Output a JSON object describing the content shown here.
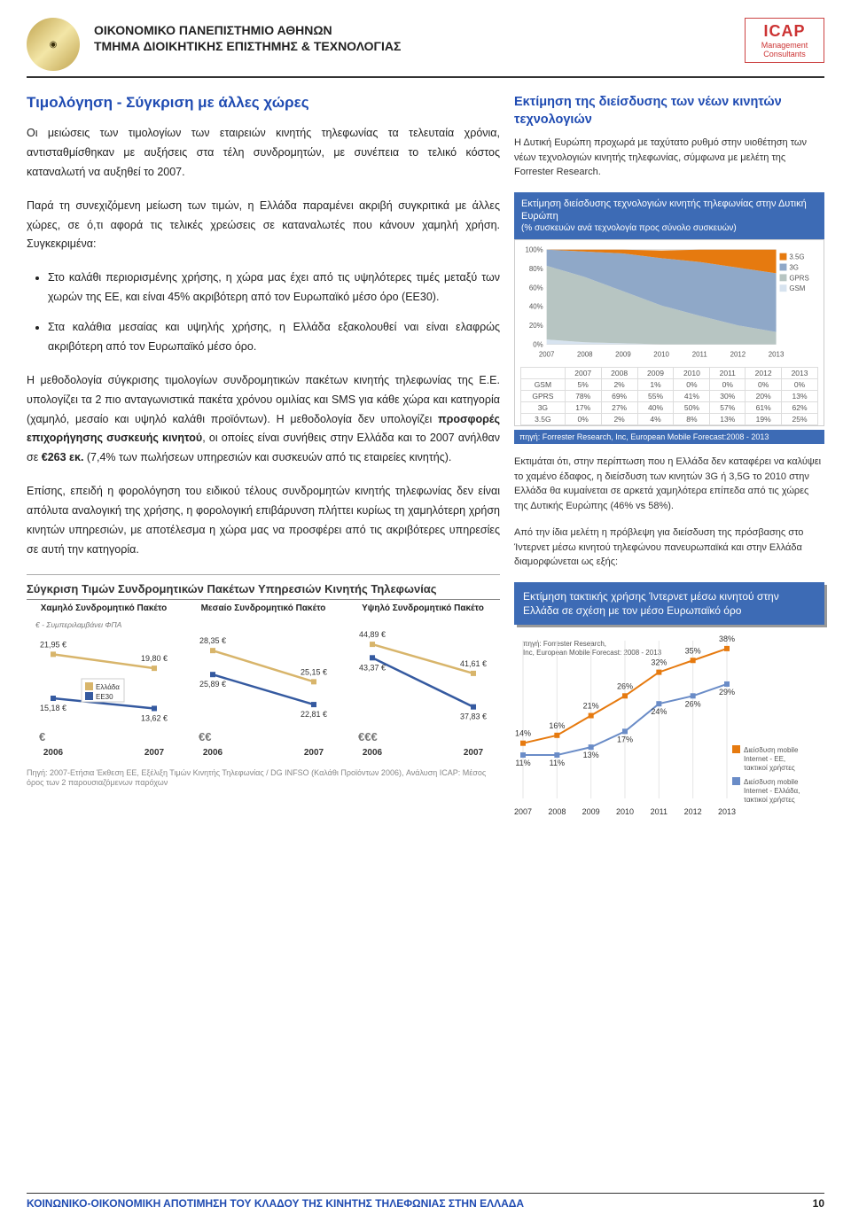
{
  "header": {
    "univ1": "ΟΙΚΟΝΟΜΙΚΟ ΠΑΝΕΠΙΣΤΗΜΙΟ ΑΘΗΝΩΝ",
    "univ2": "ΤΜΗΜΑ ΔΙΟΙΚΗΤΙΚΗΣ ΕΠΙΣΤΗΜΗΣ & ΤΕΧΝΟΛΟΓΙΑΣ",
    "icap_title": "ICAP",
    "icap_sub": "Management Consultants"
  },
  "main": {
    "title": "Τιμολόγηση - Σύγκριση με άλλες χώρες",
    "p1": "Οι μειώσεις των τιμολογίων των εταιρειών κινητής τηλεφωνίας τα τελευταία χρόνια, αντισταθμίσθηκαν με αυξήσεις στα τέλη συνδρομητών, με συνέπεια το τελικό κόστος καταναλωτή να αυξηθεί το 2007.",
    "p2": "Παρά τη συνεχιζόμενη μείωση των τιμών, η Ελλάδα παραμένει ακριβή συγκριτικά με άλλες χώρες, σε ό,τι αφορά τις τελικές χρεώσεις σε καταναλωτές που κάνουν χαμηλή χρήση. Συγκεκριμένα:",
    "b1": "Στο καλάθι περιορισμένης χρήσης, η χώρα μας έχει από τις υψηλότερες τιμές μεταξύ των χωρών της ΕΕ, και είναι 45% ακριβότερη από τον Ευρωπαϊκό μέσο όρο (ΕΕ30).",
    "b2": "Στα καλάθια μεσαίας και υψηλής χρήσης,  η Ελλάδα εξακολουθεί ναι είναι ελαφρώς ακριβότερη από τον Ευρωπαϊκό μέσο όρο.",
    "p3a": "Η μεθοδολογία σύγκρισης τιμολογίων συνδρομητικών πακέτων κινητής τηλεφωνίας της Ε.Ε. υπολογίζει τα 2 πιο ανταγωνιστικά  πακέτα χρόνου ομιλίας και SMS για κάθε χώρα και κατηγορία (χαμηλό, μεσαίο και υψηλό καλάθι προϊόντων). Η μεθοδολογία δεν υπολογίζει ",
    "p3b": "προσφορές επιχορήγησης συσκευής κινητού",
    "p3c": ", οι οποίες είναι συνήθεις στην Ελλάδα και το 2007 ανήλθαν σε ",
    "p3d": "€263 εκ.",
    "p3e": " (7,4% των πωλήσεων υπηρεσιών και συσκευών από τις εταιρείες κινητής).",
    "p4": "Επίσης, επειδή η φορολόγηση του ειδικού τέλους συνδρομητών κινητής τηλεφωνίας δεν είναι απόλυτα αναλογική της χρήσης, η φορολογική επιβάρυνση πλήττει κυρίως τη χαμηλότερη χρήση κινητών υπηρεσιών, με αποτέλεσμα η χώρα μας να προσφέρει από τις ακριβότερες υπηρεσίες σε αυτή την κατηγορία."
  },
  "side": {
    "head1": "Εκτίμηση της διείσδυσης των νέων κινητών τεχνολογιών",
    "p1": "Η Δυτική Ευρώπη προχωρά με ταχύτατο ρυθμό στην υιοθέτηση των νέων τεχνολογιών κινητής τηλεφωνίας, σύμφωνα με μελέτη της Forrester Research.",
    "boxHead": "Εκτίμηση διείσδυσης τεχνολογιών κινητής τηλεφωνίας στην Δυτική Ευρώπη",
    "boxSub": "(% συσκευών ανά τεχνολογία προς σύνολο συσκευών)",
    "area_chart": {
      "type": "area",
      "years": [
        "2007",
        "2008",
        "2009",
        "2010",
        "2011",
        "2012",
        "2013"
      ],
      "series": [
        {
          "name": "3.5G",
          "color": "#e67a0f",
          "values": [
            0,
            2,
            4,
            8,
            13,
            19,
            25
          ]
        },
        {
          "name": "3G",
          "color": "#8fa8c8",
          "values": [
            17,
            27,
            40,
            50,
            57,
            61,
            62
          ]
        },
        {
          "name": "GPRS",
          "color": "#b7c5c2",
          "values": [
            78,
            69,
            55,
            41,
            30,
            20,
            13
          ]
        },
        {
          "name": "GSM",
          "color": "#d7e3ef",
          "values": [
            5,
            2,
            1,
            0,
            0,
            0,
            0
          ]
        }
      ],
      "ylim": [
        0,
        100
      ],
      "ytick_step": 20,
      "grid_color": "#d9d9d9",
      "bg": "#ffffff"
    },
    "tech_table": {
      "rows_label": [
        "GSM",
        "GPRS",
        "3G",
        "3.5G"
      ],
      "years": [
        "2007",
        "2008",
        "2009",
        "2010",
        "2011",
        "2012",
        "2013"
      ],
      "data": [
        [
          "5%",
          "2%",
          "1%",
          "0%",
          "0%",
          "0%",
          "0%"
        ],
        [
          "78%",
          "69%",
          "55%",
          "41%",
          "30%",
          "20%",
          "13%"
        ],
        [
          "17%",
          "27%",
          "40%",
          "50%",
          "57%",
          "61%",
          "62%"
        ],
        [
          "0%",
          "2%",
          "4%",
          "8%",
          "13%",
          "19%",
          "25%"
        ]
      ]
    },
    "source1": "πηγή: Forrester Research, Inc, European Mobile Forecast:2008 - 2013",
    "p2": "Εκτιμάται ότι, στην περίπτωση που η Ελλάδα δεν καταφέρει να καλύψει το χαμένο έδαφος, η διείσδυση των κινητών 3G ή 3,5G το 2010 στην Ελλάδα θα κυμαίνεται σε αρκετά χαμηλότερα επίπεδα από τις χώρες της Δυτικής Ευρώπης (46% vs 58%).",
    "p3": "Από την ίδια μελέτη η πρόβλεψη για διείσδυση της πρόσβασης στο Ίντερνετ μέσω κινητού τηλεφώνου πανευρωπαϊκά και στην Ελλάδα διαμορφώνεται ως εξής:",
    "box2": "Εκτίμηση τακτικής χρήσης Ίντερνετ μέσω κινητού στην Ελλάδα σε σχέση με τον μέσο Ευρωπαϊκό όρο",
    "line_chart": {
      "type": "line",
      "years": [
        "2007",
        "2008",
        "2009",
        "2010",
        "2011",
        "2012",
        "2013"
      ],
      "series": [
        {
          "name": "Διείσδυση mobile Internet - ΕΕ, τακτικοί χρήστες",
          "color": "#e67a0f",
          "marker": "square",
          "values": [
            14,
            16,
            21,
            26,
            32,
            35,
            38
          ]
        },
        {
          "name": "Διείσδυση mobile Internet - Ελλάδα, τακτικοί χρήστες",
          "color": "#6a8cc7",
          "marker": "square",
          "values": [
            11,
            11,
            13,
            17,
            24,
            26,
            29
          ]
        }
      ],
      "ylim": [
        0,
        40
      ],
      "grid_color": "#e6e6e6"
    },
    "line_source": "πηγή: Forrester Research, Inc, European Mobile Forecast: 2008 - 2013"
  },
  "bottom": {
    "title": "Σύγκριση Τιμών Συνδρομητικών Πακέτων Υπηρεσιών Κινητής Τηλεφωνίας",
    "vat": "€ - Συμπεριλαμβάνει ΦΠΑ",
    "legend_gr": "Ελλάδα",
    "legend_ee": "ΕΕ30",
    "color_gr": "#d8b56b",
    "color_ee": "#355aa0",
    "sym1": "€",
    "sym2": "€€",
    "sym3": "€€€",
    "panels": [
      {
        "title": "Χαμηλό Συνδρομητικό Πακέτο",
        "years": [
          "2006",
          "2007"
        ],
        "gr": [
          21.95,
          19.8
        ],
        "ee": [
          15.18,
          13.62
        ],
        "gr_labels": [
          "21,95 €",
          "19,80 €"
        ],
        "ee_labels": [
          "15,18 €",
          "13,62 €"
        ],
        "ylim": [
          10,
          25
        ]
      },
      {
        "title": "Μεσαίο Συνδρομητικό Πακέτο",
        "years": [
          "2006",
          "2007"
        ],
        "gr": [
          28.35,
          25.15
        ],
        "ee": [
          25.89,
          22.81
        ],
        "gr_labels": [
          "28,35 €",
          "25,15 €"
        ],
        "ee_labels": [
          "25,89 €",
          "22,81 €"
        ],
        "ylim": [
          20,
          30
        ]
      },
      {
        "title": "Υψηλό Συνδρομητικό Πακέτο",
        "years": [
          "2006",
          "2007"
        ],
        "gr": [
          44.89,
          41.61
        ],
        "ee": [
          43.37,
          37.83
        ],
        "gr_labels": [
          "44,89 €",
          "41,61 €"
        ],
        "ee_labels": [
          "43,37 €",
          "37,83 €"
        ],
        "ylim": [
          35,
          46
        ]
      }
    ],
    "source": "Πηγή: 2007-Ετήσια Έκθεση ΕΕ, Εξέλιξη Τιμών Κινητής Τηλεφωνίας / DG INFSO (Καλάθι Προϊόντων 2006), Ανάλυση ICAP: Μέσος όρος των 2 παρουσιαζόμενων παρόχων"
  },
  "footer": {
    "text": "ΚΟΙΝΩΝΙΚΟ-ΟΙΚΟΝΟΜΙΚΗ ΑΠΟΤΙΜΗΣΗ ΤΟΥ ΚΛΑΔΟΥ ΤΗΣ ΚΙΝΗΤΗΣ ΤΗΛΕΦΩΝΙΑΣ ΣΤΗΝ ΕΛΛΑΔΑ",
    "page": "10"
  }
}
